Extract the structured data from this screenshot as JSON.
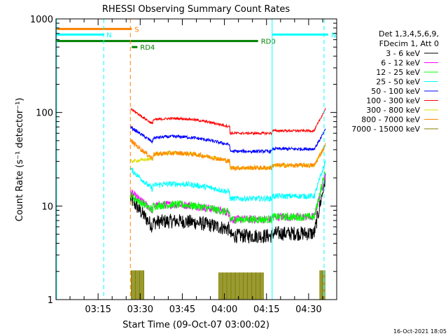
{
  "chart_data": {
    "type": "line",
    "title": "RHESSI Observing Summary Count Rates",
    "xlabel": "Start Time (09-Oct-07 03:00:02)",
    "ylabel": "Count Rate (s⁻¹ detector⁻¹)",
    "xlim_minutes": [
      0,
      100
    ],
    "ylim": [
      1,
      1000
    ],
    "ylog": true,
    "x_ticks": [
      {
        "minute": 15,
        "label": "03:15"
      },
      {
        "minute": 30,
        "label": "03:30"
      },
      {
        "minute": 45,
        "label": "03:45"
      },
      {
        "minute": 60,
        "label": "04:00"
      },
      {
        "minute": 75,
        "label": "04:15"
      },
      {
        "minute": 90,
        "label": "04:30"
      }
    ],
    "y_ticks": [
      {
        "value": 1,
        "label": "1"
      },
      {
        "value": 10,
        "label": "10"
      },
      {
        "value": 100,
        "label": "100"
      },
      {
        "value": 1000,
        "label": "1000"
      }
    ],
    "legend_header": [
      "Det 1,3,4,5,6,9,",
      "FDecim 1, Att 0"
    ],
    "legend_placement": "right",
    "series": [
      {
        "name": "3 - 6 keV",
        "color": "#000000",
        "start": 12,
        "plateau": 6,
        "end": 20,
        "noise": 0.18
      },
      {
        "name": "6 - 12 keV",
        "color": "#ff00ff",
        "start": 14,
        "plateau": 9,
        "end": 22,
        "noise": 0.1
      },
      {
        "name": "12 - 25 keV",
        "color": "#00ff00",
        "start": 13,
        "plateau": 9,
        "end": 24,
        "noise": 0.1
      },
      {
        "name": "25 - 50 keV",
        "color": "#00ffff",
        "start": 25,
        "plateau": 15,
        "end": 30,
        "noise": 0.07
      },
      {
        "name": "50 - 100 keV",
        "color": "#0000ff",
        "start": 70,
        "plateau": 48,
        "end": 65,
        "noise": 0.04
      },
      {
        "name": "100 - 300 keV",
        "color": "#ff0000",
        "start": 110,
        "plateau": 75,
        "end": 110,
        "noise": 0.03
      },
      {
        "name": "300 - 800 keV",
        "color": "#dddd00",
        "start": 30,
        "plateau": 32,
        "end": 45,
        "noise": 0.04
      },
      {
        "name": "800 - 7000 keV",
        "color": "#ff8800",
        "start": 50,
        "plateau": 32,
        "end": 45,
        "noise": 0.06
      },
      {
        "name": "7000 - 15000 keV",
        "color": "#808000",
        "start": 1,
        "plateau": 1,
        "end": 1,
        "noise": 0
      }
    ],
    "intervals": {
      "night_start_min": 26.5,
      "saa_spike_min": 62,
      "day_start_min": 77,
      "data_end_min": 96
    },
    "flags": [
      {
        "label": "S",
        "color": "#ff8000",
        "value": 780,
        "from": 0,
        "to": 27
      },
      {
        "label": "N",
        "color": "#00ffff",
        "value": 680,
        "from": 0,
        "to": 17
      },
      {
        "label": "N",
        "color": "#00ffff",
        "value": 680,
        "from": 77,
        "to": 97
      },
      {
        "label": "RD0",
        "color": "#008000",
        "value": 580,
        "from": 0,
        "to": 72
      },
      {
        "label": "RD4",
        "color": "#008000",
        "value": 500,
        "from": 27,
        "to": 29
      }
    ],
    "vlines": [
      {
        "minute": 0.2,
        "color": "#00ffff",
        "dash": false
      },
      {
        "minute": 17,
        "color": "#00ffff",
        "dash": true
      },
      {
        "minute": 26.5,
        "color": "#ff8000",
        "dash": true
      },
      {
        "minute": 77,
        "color": "#00ffff",
        "dash": false
      },
      {
        "minute": 95.5,
        "color": "#00ffff",
        "dash": true
      }
    ]
  },
  "footer": {
    "timestamp": "16-Oct-2021 18:05"
  }
}
